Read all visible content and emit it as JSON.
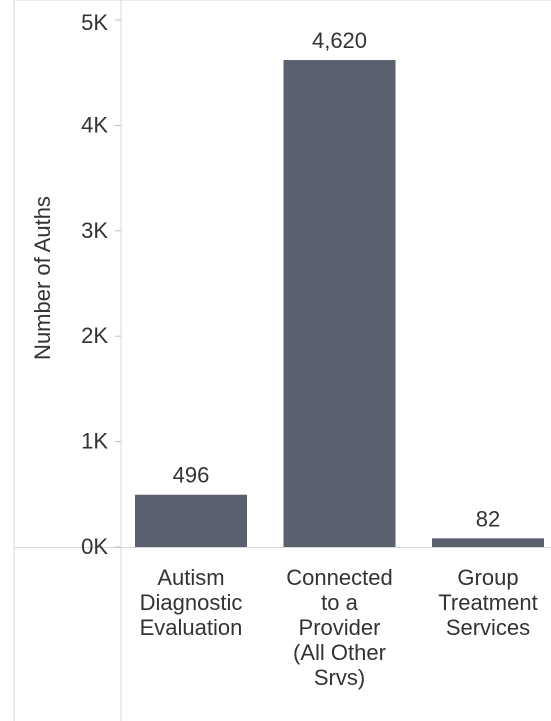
{
  "chart_data": {
    "type": "bar",
    "ylabel": "Number of Auths",
    "ylim": [
      0,
      5000
    ],
    "yticks": [
      {
        "value": 0,
        "label": "0K"
      },
      {
        "value": 1000,
        "label": "1K"
      },
      {
        "value": 2000,
        "label": "2K"
      },
      {
        "value": 3000,
        "label": "3K"
      },
      {
        "value": 4000,
        "label": "4K"
      },
      {
        "value": 5000,
        "label": "5K"
      }
    ],
    "categories": [
      [
        "Autism",
        "Diagnostic",
        "Evaluation"
      ],
      [
        "Connected",
        "to a",
        "Provider",
        "(All Other",
        "Srvs)"
      ],
      [
        "Group",
        "Treatment",
        "Services"
      ]
    ],
    "values": [
      496,
      4620,
      82
    ],
    "data_labels": [
      "496",
      "4,620",
      "82"
    ],
    "bar_color": "#5a606e",
    "grid": false
  }
}
